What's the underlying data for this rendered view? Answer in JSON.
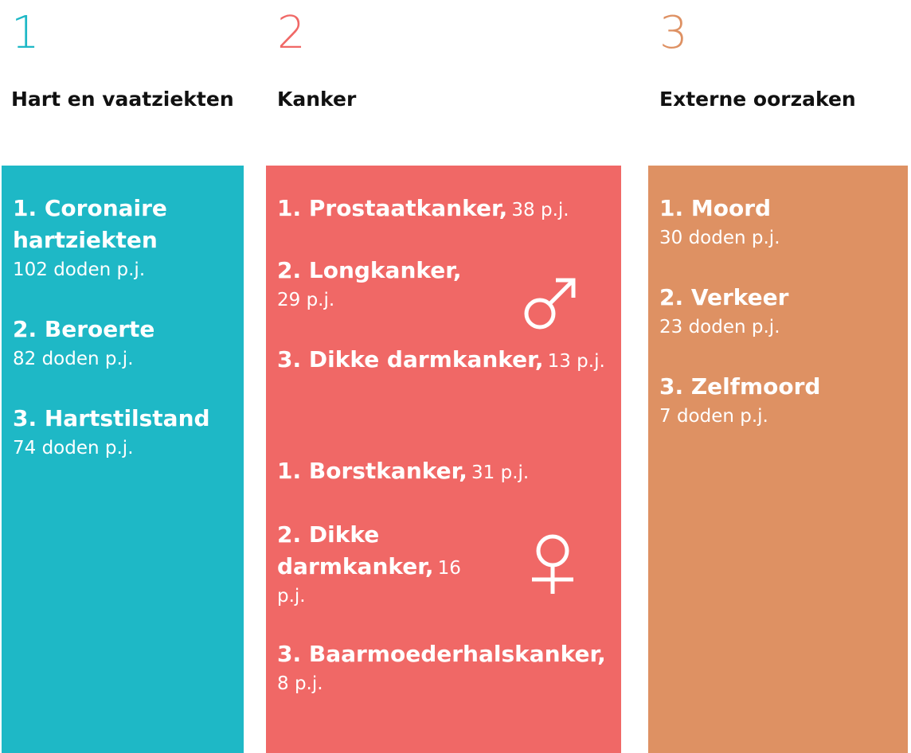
{
  "colors": {
    "heart": "#1eb8c6",
    "cancer": "#f06866",
    "external": "#de9163"
  },
  "columns": [
    {
      "rank": "1",
      "title": "Hart en vaatziekten",
      "items": [
        {
          "name_line1": "1. Coronaire",
          "name_line2": "hartziekten",
          "value": "102 doden p.j."
        },
        {
          "name": "2. Beroerte",
          "value": "82 doden p.j."
        },
        {
          "name": "3. Hartstilstand",
          "value": "74 doden p.j."
        }
      ]
    },
    {
      "rank": "2",
      "title": "Kanker",
      "male_icon": "male-symbol-icon",
      "female_icon": "female-symbol-icon",
      "male_items": [
        {
          "name": "1. Prostaatkanker,",
          "value": "38 p.j."
        },
        {
          "name": "2. Longkanker,",
          "value": "29 p.j."
        },
        {
          "name": "3. Dikke darmkanker,",
          "value": "13 p.j."
        }
      ],
      "female_items": [
        {
          "name": "1. Borstkanker,",
          "value": "31 p.j."
        },
        {
          "name_line1": "2. Dikke",
          "name_line2": "darmkanker,",
          "value_part1": "16",
          "value_part2": "p.j."
        },
        {
          "name": "3. Baarmoederhalskanker,",
          "value": "8 p.j."
        }
      ]
    },
    {
      "rank": "3",
      "title": "Externe oorzaken",
      "items": [
        {
          "name": "1. Moord",
          "value": "30 doden p.j."
        },
        {
          "name": "2. Verkeer",
          "value": "23 doden p.j."
        },
        {
          "name": "3. Zelfmoord",
          "value": "7 doden p.j."
        }
      ]
    }
  ]
}
